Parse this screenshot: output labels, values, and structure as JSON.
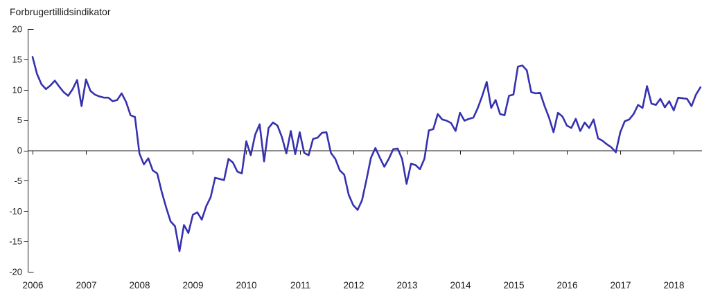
{
  "title": "Forbrugertillidsindikator",
  "chart_data": {
    "type": "line",
    "title": "Forbrugertillidsindikator",
    "legend_position": "none",
    "grid": false,
    "background_color": "#ffffff",
    "line_color": "#3631af",
    "axis_color": "#1a1a1a",
    "ylim": [
      -20,
      20
    ],
    "y_ticks": [
      20,
      15,
      10,
      5,
      0,
      -5,
      -10,
      -15,
      -20
    ],
    "y_tick_labels": [
      "20",
      "15",
      "10",
      "5",
      "0",
      "-5",
      "-10",
      "-15",
      "-20"
    ],
    "x_tick_labels": [
      "2006",
      "2007",
      "2008",
      "2009",
      "2010",
      "2011",
      "2012",
      "2013",
      "2014",
      "2015",
      "2016",
      "2017",
      "2018"
    ],
    "series": [
      {
        "name": "Forbrugertillidsindikator",
        "start": "2006-01",
        "frequency": "monthly",
        "values": [
          15.4,
          12.6,
          10.9,
          10.1,
          10.7,
          11.5,
          10.5,
          9.6,
          9.0,
          10.1,
          11.6,
          7.3,
          11.7,
          9.8,
          9.2,
          8.9,
          8.7,
          8.7,
          8.1,
          8.3,
          9.4,
          8.0,
          5.8,
          5.5,
          -0.5,
          -2.3,
          -1.3,
          -3.3,
          -3.8,
          -6.8,
          -9.4,
          -11.7,
          -12.5,
          -16.6,
          -12.3,
          -13.6,
          -10.6,
          -10.2,
          -11.4,
          -9.2,
          -7.7,
          -4.5,
          -4.7,
          -4.9,
          -1.4,
          -2.0,
          -3.5,
          -3.8,
          1.5,
          -0.8,
          2.6,
          4.3,
          -1.8,
          3.7,
          4.6,
          4.1,
          2.2,
          -0.5,
          3.2,
          -0.6,
          3.0,
          -0.4,
          -0.8,
          1.9,
          2.1,
          2.9,
          3.0,
          -0.4,
          -1.4,
          -3.3,
          -4.0,
          -7.3,
          -9.0,
          -9.8,
          -8.2,
          -4.8,
          -1.2,
          0.4,
          -1.2,
          -2.7,
          -1.4,
          0.2,
          0.3,
          -1.4,
          -5.5,
          -2.2,
          -2.4,
          -3.1,
          -1.4,
          3.3,
          3.5,
          6.0,
          5.1,
          4.9,
          4.5,
          3.2,
          6.2,
          4.9,
          5.2,
          5.4,
          7.0,
          9.0,
          11.3,
          7.0,
          8.3,
          6.0,
          5.8,
          9.0,
          9.2,
          13.8,
          14.0,
          13.2,
          9.6,
          9.4,
          9.5,
          7.3,
          5.4,
          3.0,
          6.2,
          5.6,
          4.1,
          3.7,
          5.2,
          3.2,
          4.6,
          3.7,
          5.1,
          2.0,
          1.6,
          1.0,
          0.5,
          -0.3,
          3.0,
          4.8,
          5.1,
          6.0,
          7.5,
          7.0,
          10.6,
          7.7,
          7.5,
          8.5,
          7.1,
          8.1,
          6.6,
          8.7,
          8.6,
          8.5,
          7.3,
          9.2,
          10.4
        ]
      }
    ]
  }
}
